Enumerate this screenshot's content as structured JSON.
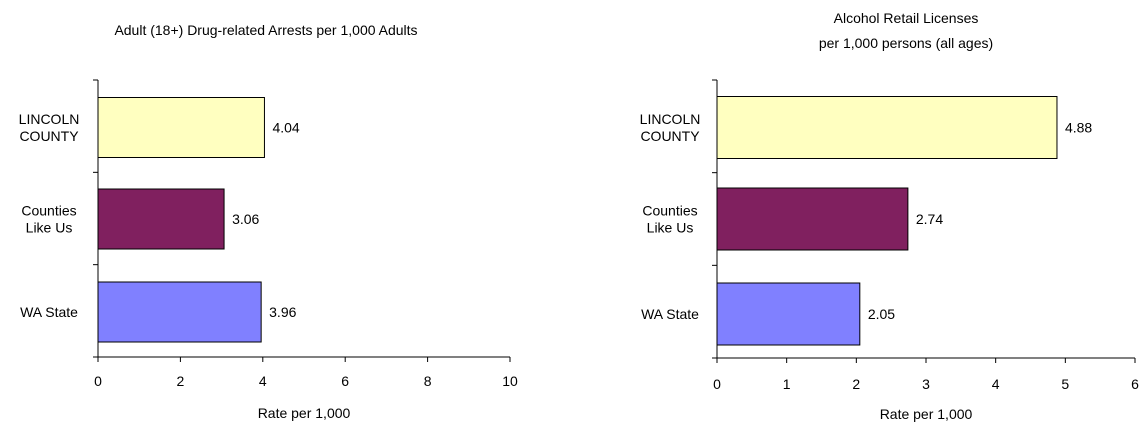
{
  "chart_data": [
    {
      "type": "bar",
      "orientation": "horizontal",
      "title": "Adult (18+) Drug-related Arrests per 1,000 Adults",
      "xlabel": "Rate per 1,000",
      "ylabel": "",
      "categories": [
        "LINCOLN COUNTY",
        "Counties Like Us",
        "WA State"
      ],
      "category_lines": [
        [
          "LINCOLN",
          "COUNTY"
        ],
        [
          "Counties",
          "Like Us"
        ],
        [
          "WA State"
        ]
      ],
      "values": [
        4.04,
        3.06,
        3.96
      ],
      "value_labels": [
        "4.04",
        "3.06",
        "3.96"
      ],
      "colors": [
        "#ffffc0",
        "#80205f",
        "#8080ff"
      ],
      "xlim": [
        0,
        10
      ],
      "xticks": [
        0,
        2,
        4,
        6,
        8,
        10
      ],
      "grid": false,
      "legend": "none"
    },
    {
      "type": "bar",
      "orientation": "horizontal",
      "title": "Alcohol Retail Licenses per 1,000 persons (all ages)",
      "title_lines": [
        "Alcohol Retail Licenses",
        "per 1,000 persons (all ages)"
      ],
      "xlabel": "Rate per 1,000",
      "ylabel": "",
      "categories": [
        "LINCOLN COUNTY",
        "Counties Like Us",
        "WA State"
      ],
      "category_lines": [
        [
          "LINCOLN",
          "COUNTY"
        ],
        [
          "Counties",
          "Like Us"
        ],
        [
          "WA State"
        ]
      ],
      "values": [
        4.88,
        2.74,
        2.05
      ],
      "value_labels": [
        "4.88",
        "2.74",
        "2.05"
      ],
      "colors": [
        "#ffffc0",
        "#80205f",
        "#8080ff"
      ],
      "xlim": [
        0,
        6
      ],
      "xticks": [
        0,
        1,
        2,
        3,
        4,
        5,
        6
      ],
      "grid": false,
      "legend": "none"
    }
  ]
}
